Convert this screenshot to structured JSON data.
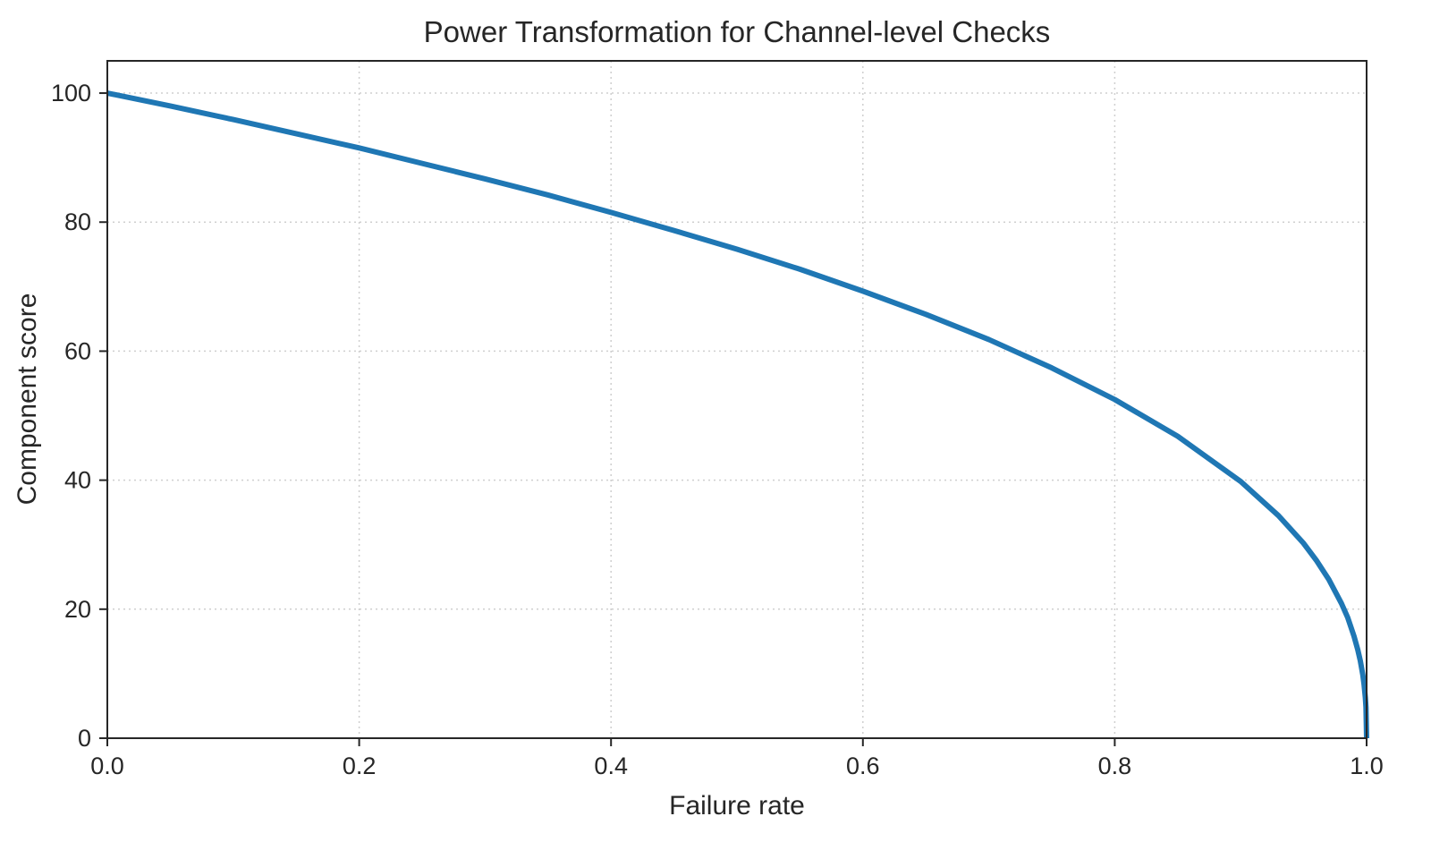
{
  "chart": {
    "title": "Power Transformation for Channel-level Checks",
    "xlabel": "Failure rate",
    "ylabel": "Component score"
  },
  "chart_data": {
    "type": "line",
    "title": "Power Transformation for Channel-level Checks",
    "xlabel": "Failure rate",
    "ylabel": "Component score",
    "xlim": [
      0,
      1
    ],
    "ylim": [
      0,
      105
    ],
    "x_ticks": [
      0.0,
      0.2,
      0.4,
      0.6,
      0.8,
      1.0
    ],
    "x_tick_labels": [
      "0.0",
      "0.2",
      "0.4",
      "0.6",
      "0.8",
      "1.0"
    ],
    "y_ticks": [
      0,
      20,
      40,
      60,
      80,
      100
    ],
    "y_tick_labels": [
      "0",
      "20",
      "40",
      "60",
      "80",
      "100"
    ],
    "grid": true,
    "grid_style": "dotted",
    "legend": "none",
    "line_color": "#1f77b4",
    "grid_color": "#cfcfcf",
    "spine_color": "#262626",
    "series": [
      {
        "name": "Component score vs Failure rate",
        "x": [
          0,
          0.05,
          0.1,
          0.15,
          0.2,
          0.25,
          0.3,
          0.35,
          0.4,
          0.45,
          0.5,
          0.55,
          0.6,
          0.65,
          0.7,
          0.75,
          0.8,
          0.85,
          0.9,
          0.93,
          0.95,
          0.96,
          0.97,
          0.98,
          0.985,
          0.99,
          0.993,
          0.995,
          0.997,
          0.998,
          0.999,
          0.9995,
          1.0
        ],
        "y": [
          100,
          98.0,
          95.9,
          93.7,
          91.5,
          89.1,
          86.7,
          84.2,
          81.5,
          78.7,
          75.8,
          72.7,
          69.3,
          65.7,
          61.8,
          57.4,
          52.5,
          46.8,
          39.8,
          34.5,
          30.2,
          27.6,
          24.6,
          20.9,
          18.7,
          15.8,
          13.7,
          12.0,
          9.8,
          8.3,
          6.3,
          4.8,
          0
        ]
      }
    ]
  }
}
